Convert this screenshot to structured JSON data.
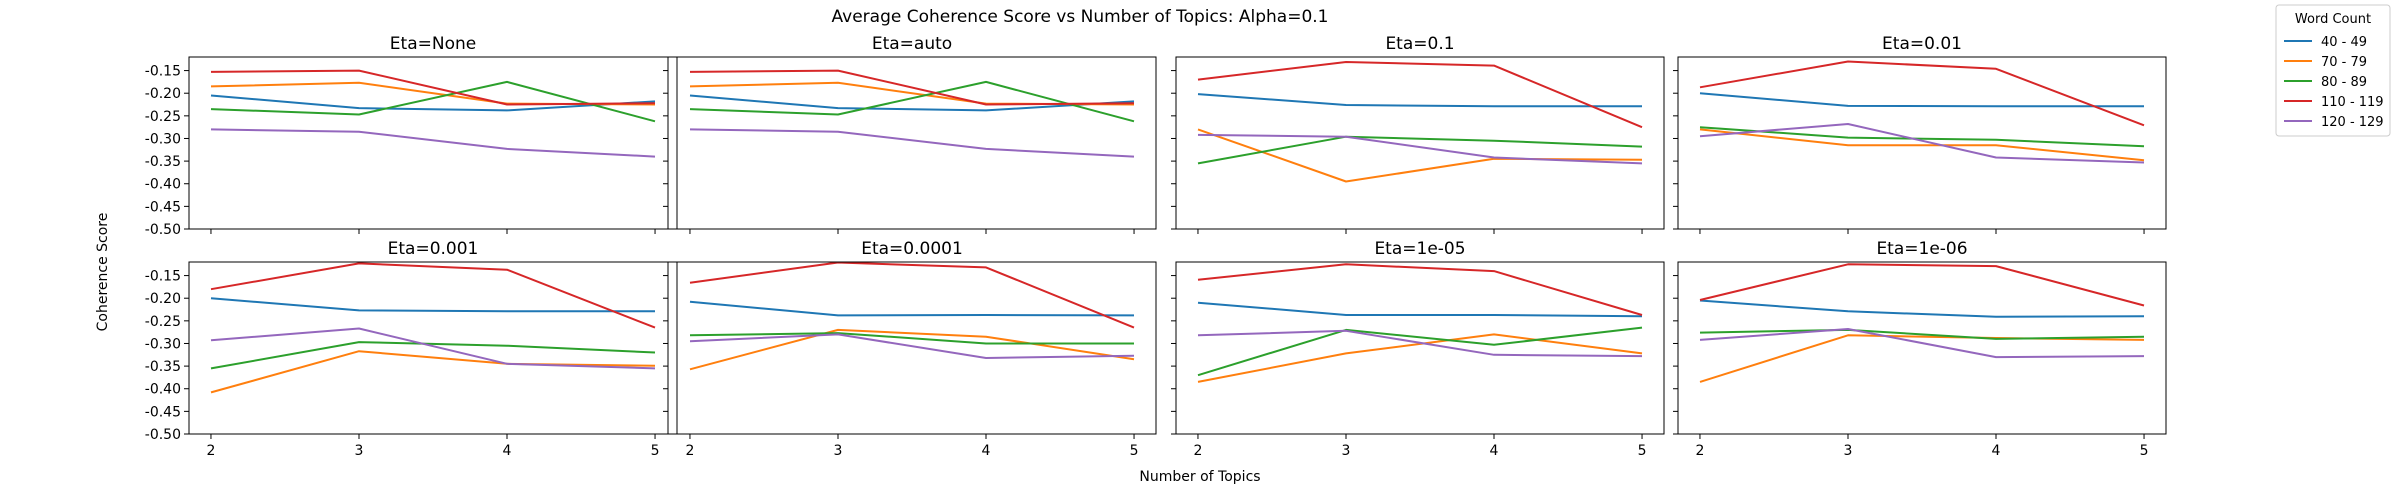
{
  "chart_data": {
    "type": "line",
    "title": "Average Coherence Score vs Number of Topics: Alpha=0.1",
    "xlabel": "Number of Topics",
    "ylabel": "Coherence Score",
    "x": [
      2,
      3,
      4,
      5
    ],
    "x_ticks": [
      "2",
      "3",
      "4",
      "5"
    ],
    "ylim": [
      -0.5,
      -0.12
    ],
    "y_ticks": [
      "-0.15",
      "-0.20",
      "-0.25",
      "-0.30",
      "-0.35",
      "-0.40",
      "-0.45",
      "-0.50"
    ],
    "y_tick_values": [
      -0.15,
      -0.2,
      -0.25,
      -0.3,
      -0.35,
      -0.4,
      -0.45,
      -0.5
    ],
    "grid": false,
    "legend": {
      "title": "Word Count",
      "placement": "outside-top-right",
      "entries": [
        "40 - 49",
        "70 - 79",
        "80 - 89",
        "110 - 119",
        "120 - 129"
      ]
    },
    "series_colors": [
      "#1f77b4",
      "#ff7f0e",
      "#2ca02c",
      "#d62728",
      "#9467bd"
    ],
    "subplots": [
      {
        "title": "Eta=None",
        "series": [
          {
            "name": "40 - 49",
            "values": [
              -0.205,
              -0.233,
              -0.238,
              -0.218
            ]
          },
          {
            "name": "70 - 79",
            "values": [
              -0.185,
              -0.177,
              -0.223,
              -0.225
            ]
          },
          {
            "name": "80 - 89",
            "values": [
              -0.235,
              -0.247,
              -0.175,
              -0.262
            ]
          },
          {
            "name": "110 - 119",
            "values": [
              -0.153,
              -0.15,
              -0.225,
              -0.222
            ]
          },
          {
            "name": "120 - 129",
            "values": [
              -0.28,
              -0.285,
              -0.323,
              -0.34
            ]
          }
        ]
      },
      {
        "title": "Eta=auto",
        "series": [
          {
            "name": "40 - 49",
            "values": [
              -0.205,
              -0.233,
              -0.238,
              -0.218
            ]
          },
          {
            "name": "70 - 79",
            "values": [
              -0.185,
              -0.177,
              -0.223,
              -0.225
            ]
          },
          {
            "name": "80 - 89",
            "values": [
              -0.235,
              -0.247,
              -0.175,
              -0.262
            ]
          },
          {
            "name": "110 - 119",
            "values": [
              -0.153,
              -0.15,
              -0.225,
              -0.222
            ]
          },
          {
            "name": "120 - 129",
            "values": [
              -0.28,
              -0.285,
              -0.323,
              -0.34
            ]
          }
        ]
      },
      {
        "title": "Eta=0.1",
        "series": [
          {
            "name": "40 - 49",
            "values": [
              -0.202,
              -0.226,
              -0.229,
              -0.229
            ]
          },
          {
            "name": "70 - 79",
            "values": [
              -0.28,
              -0.395,
              -0.345,
              -0.347
            ]
          },
          {
            "name": "80 - 89",
            "values": [
              -0.355,
              -0.296,
              -0.305,
              -0.318
            ]
          },
          {
            "name": "110 - 119",
            "values": [
              -0.17,
              -0.131,
              -0.139,
              -0.275
            ]
          },
          {
            "name": "120 - 129",
            "values": [
              -0.292,
              -0.296,
              -0.342,
              -0.355
            ]
          }
        ]
      },
      {
        "title": "Eta=0.01",
        "series": [
          {
            "name": "40 - 49",
            "values": [
              -0.2,
              -0.228,
              -0.229,
              -0.229
            ]
          },
          {
            "name": "70 - 79",
            "values": [
              -0.28,
              -0.315,
              -0.315,
              -0.348
            ]
          },
          {
            "name": "80 - 89",
            "values": [
              -0.275,
              -0.298,
              -0.303,
              -0.317
            ]
          },
          {
            "name": "110 - 119",
            "values": [
              -0.187,
              -0.13,
              -0.146,
              -0.271
            ]
          },
          {
            "name": "120 - 129",
            "values": [
              -0.295,
              -0.268,
              -0.342,
              -0.353
            ]
          }
        ]
      },
      {
        "title": "Eta=0.001",
        "series": [
          {
            "name": "40 - 49",
            "values": [
              -0.2,
              -0.227,
              -0.229,
              -0.229
            ]
          },
          {
            "name": "70 - 79",
            "values": [
              -0.408,
              -0.317,
              -0.345,
              -0.349
            ]
          },
          {
            "name": "80 - 89",
            "values": [
              -0.355,
              -0.297,
              -0.305,
              -0.32
            ]
          },
          {
            "name": "110 - 119",
            "values": [
              -0.18,
              -0.123,
              -0.137,
              -0.265
            ]
          },
          {
            "name": "120 - 129",
            "values": [
              -0.293,
              -0.267,
              -0.345,
              -0.355
            ]
          }
        ]
      },
      {
        "title": "Eta=0.0001",
        "series": [
          {
            "name": "40 - 49",
            "values": [
              -0.208,
              -0.238,
              -0.237,
              -0.238
            ]
          },
          {
            "name": "70 - 79",
            "values": [
              -0.357,
              -0.27,
              -0.285,
              -0.335
            ]
          },
          {
            "name": "80 - 89",
            "values": [
              -0.282,
              -0.277,
              -0.3,
              -0.3
            ]
          },
          {
            "name": "110 - 119",
            "values": [
              -0.166,
              -0.121,
              -0.132,
              -0.265
            ]
          },
          {
            "name": "120 - 129",
            "values": [
              -0.295,
              -0.28,
              -0.332,
              -0.327
            ]
          }
        ]
      },
      {
        "title": "Eta=1e-05",
        "series": [
          {
            "name": "40 - 49",
            "values": [
              -0.21,
              -0.237,
              -0.237,
              -0.24
            ]
          },
          {
            "name": "70 - 79",
            "values": [
              -0.385,
              -0.322,
              -0.28,
              -0.322
            ]
          },
          {
            "name": "80 - 89",
            "values": [
              -0.37,
              -0.27,
              -0.303,
              -0.265
            ]
          },
          {
            "name": "110 - 119",
            "values": [
              -0.159,
              -0.125,
              -0.14,
              -0.237
            ]
          },
          {
            "name": "120 - 129",
            "values": [
              -0.282,
              -0.272,
              -0.325,
              -0.328
            ]
          }
        ]
      },
      {
        "title": "Eta=1e-06",
        "series": [
          {
            "name": "40 - 49",
            "values": [
              -0.205,
              -0.229,
              -0.241,
              -0.24
            ]
          },
          {
            "name": "70 - 79",
            "values": [
              -0.385,
              -0.282,
              -0.288,
              -0.292
            ]
          },
          {
            "name": "80 - 89",
            "values": [
              -0.276,
              -0.27,
              -0.29,
              -0.285
            ]
          },
          {
            "name": "110 - 119",
            "values": [
              -0.204,
              -0.125,
              -0.129,
              -0.216
            ]
          },
          {
            "name": "120 - 129",
            "values": [
              -0.292,
              -0.268,
              -0.33,
              -0.328
            ]
          }
        ]
      }
    ]
  }
}
